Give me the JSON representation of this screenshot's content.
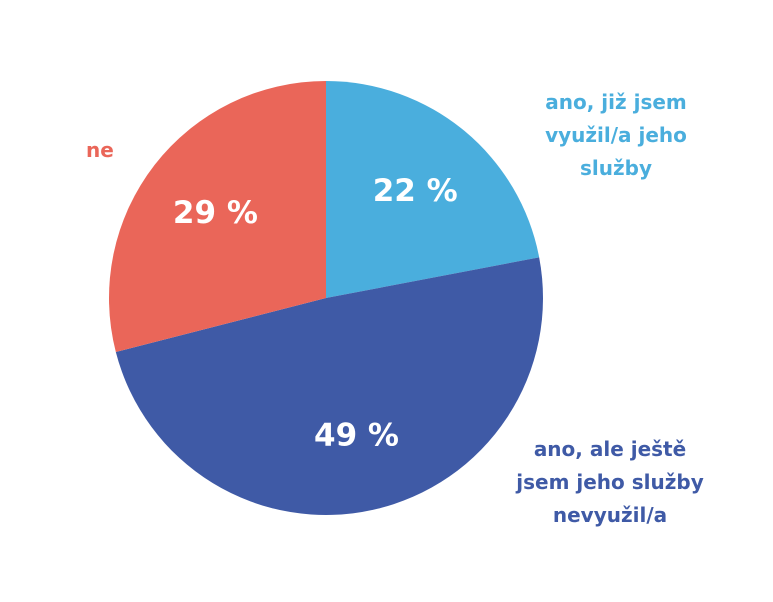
{
  "chart_data": {
    "type": "pie",
    "title": "",
    "start_angle_deg": 0,
    "direction": "clockwise",
    "slices": [
      {
        "label": "ano, již jsem\nvyužil/a jeho\nslužby",
        "value": 22,
        "value_label": "22 %",
        "color": "#4aaedd"
      },
      {
        "label": "ano, ale ještě\njsem jeho služby\nnevyužil/a",
        "value": 49,
        "value_label": "49 %",
        "color": "#3f5aa6"
      },
      {
        "label": "ne",
        "value": 29,
        "value_label": "29 %",
        "color": "#ea6659"
      }
    ]
  }
}
